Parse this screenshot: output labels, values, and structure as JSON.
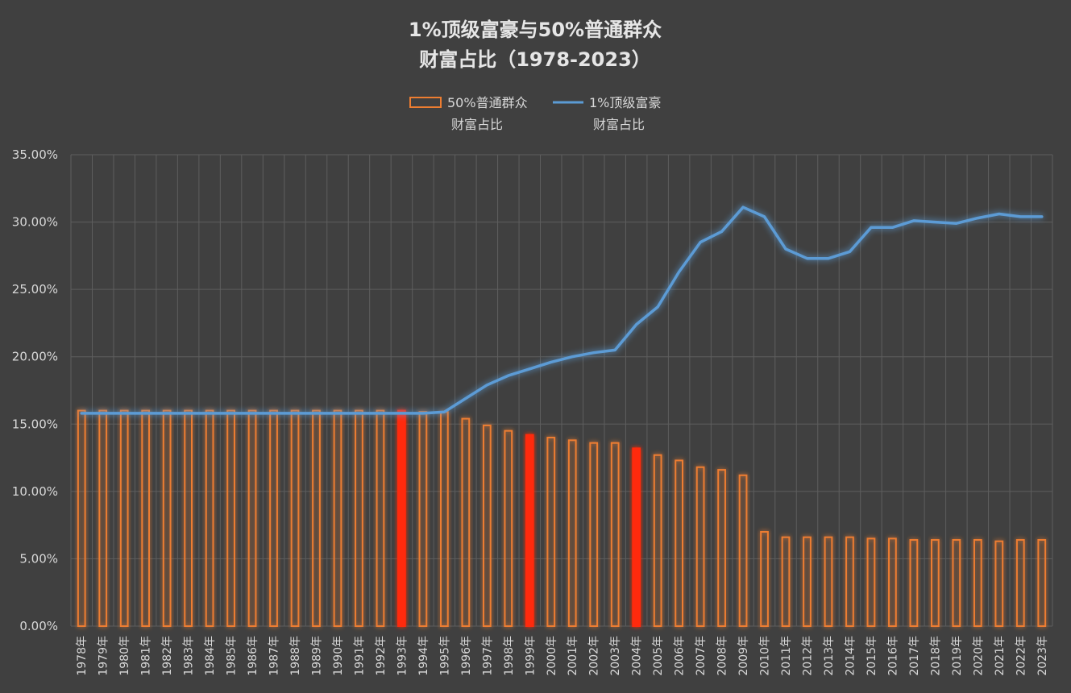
{
  "chart_data": {
    "type": "bar",
    "title_lines": [
      "1%顶级富豪与50%普通群众",
      "财富占比（1978-2023）"
    ],
    "categories": [
      "1978年",
      "1979年",
      "1980年",
      "1981年",
      "1982年",
      "1983年",
      "1984年",
      "1985年",
      "1986年",
      "1987年",
      "1988年",
      "1989年",
      "1990年",
      "1991年",
      "1992年",
      "1993年",
      "1994年",
      "1995年",
      "1996年",
      "1997年",
      "1998年",
      "1999年",
      "2000年",
      "2001年",
      "2002年",
      "2003年",
      "2004年",
      "2005年",
      "2006年",
      "2007年",
      "2008年",
      "2009年",
      "2010年",
      "2011年",
      "2012年",
      "2013年",
      "2014年",
      "2015年",
      "2016年",
      "2017年",
      "2018年",
      "2019年",
      "2020年",
      "2021年",
      "2022年",
      "2023年"
    ],
    "series": [
      {
        "name_lines": [
          "50%普通群众",
          "财富占比"
        ],
        "kind": "bar",
        "color": "#ed7d31",
        "values": [
          16.0,
          16.0,
          16.0,
          16.0,
          16.0,
          16.0,
          16.0,
          16.0,
          16.0,
          16.0,
          16.0,
          16.0,
          16.0,
          16.0,
          16.0,
          16.0,
          15.9,
          15.9,
          15.4,
          14.9,
          14.5,
          14.2,
          14.0,
          13.8,
          13.6,
          13.6,
          13.2,
          12.7,
          12.3,
          11.8,
          11.6,
          11.2,
          7.0,
          6.6,
          6.6,
          6.6,
          6.6,
          6.5,
          6.5,
          6.4,
          6.4,
          6.4,
          6.4,
          6.3,
          6.4,
          6.4
        ]
      },
      {
        "name_lines": [
          "1%顶级富豪",
          "财富占比"
        ],
        "kind": "line",
        "color": "#5b9bd5",
        "values": [
          15.8,
          15.8,
          15.8,
          15.8,
          15.8,
          15.8,
          15.8,
          15.8,
          15.8,
          15.8,
          15.8,
          15.8,
          15.8,
          15.8,
          15.8,
          15.8,
          15.8,
          15.9,
          16.9,
          17.9,
          18.6,
          19.1,
          19.6,
          20.0,
          20.3,
          20.5,
          22.4,
          23.7,
          26.3,
          28.5,
          29.3,
          31.1,
          30.4,
          28.0,
          27.3,
          27.3,
          27.8,
          29.6,
          29.6,
          30.1,
          30.0,
          29.9,
          30.3,
          30.6,
          30.4,
          30.4
        ]
      }
    ],
    "highlight_categories": [
      "1993年",
      "1999年",
      "2004年"
    ],
    "highlight_color": "#ff2a0a",
    "y_ticks": [
      "0.00%",
      "5.00%",
      "10.00%",
      "15.00%",
      "20.00%",
      "25.00%",
      "30.00%",
      "35.00%"
    ],
    "ylim": [
      0,
      35
    ],
    "grid": true,
    "legend_position": "top-center",
    "xlabel": "",
    "ylabel": ""
  },
  "colors": {
    "background": "#404040",
    "grid": "#5e5e5e",
    "text": "#d8d8d8"
  }
}
